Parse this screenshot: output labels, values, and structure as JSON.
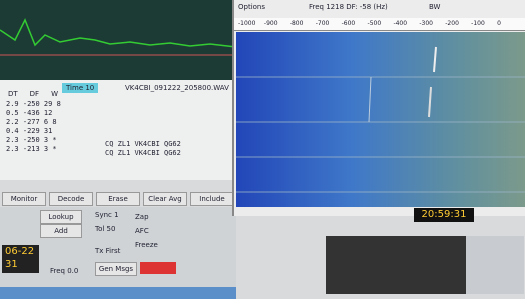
{
  "decode_window": {
    "header_cols": [
      "DT",
      "DF",
      "W"
    ],
    "time_label": "Time 10",
    "file": "VK4CBI_091222_205800.WAV",
    "rows": [
      "2.9 -250 29 8",
      "0.5 -436 12",
      "2.2 -277 6 8",
      "0.4 -229 31",
      "2.3 -250 3 *",
      "2.3 -213 3 *"
    ],
    "messages": [
      "CQ ZL1 VK4CBI QG62",
      "CQ ZL1 VK4CBI QG62"
    ]
  },
  "buttons": [
    "Monitor",
    "Decode",
    "Erase",
    "Clear Avg",
    "Include"
  ],
  "controls": {
    "left": [
      "Lookup",
      "Add"
    ],
    "sync": "Sync 1",
    "tol": "Tol 50",
    "checks": [
      "Zap",
      "AFC",
      "Freeze"
    ],
    "tx_first": "Tx First",
    "gen_msgs": "Gen Msgs",
    "clock": [
      "06-22",
      "31"
    ],
    "freq": "Freq 0.0"
  },
  "waterfall": {
    "options": "Options",
    "freq_label": "Freq 1218  DF: -58 (Hz)",
    "bw": "BW",
    "scale": [
      "-1000",
      "-900",
      "-800",
      "-700",
      "-600",
      "-500",
      "-400",
      "-300",
      "-200",
      "-100",
      "0"
    ],
    "time": "20:59:31"
  }
}
